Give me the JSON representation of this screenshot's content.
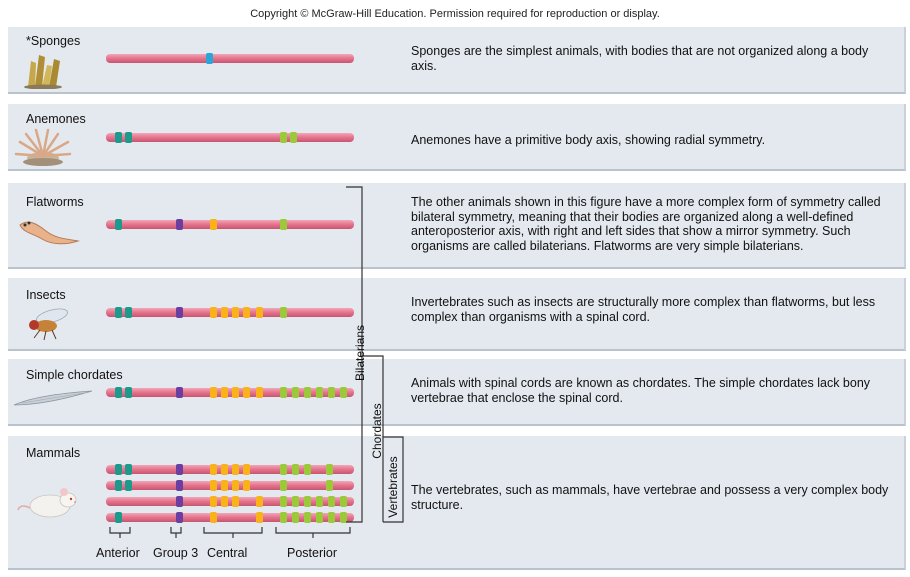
{
  "copyright": "Copyright © McGraw-Hill Education. Permission required for reproduction or display.",
  "panels": [
    {
      "name": "*Sponges",
      "description": "Sponges are the simplest animals, with bodies that are not organized along a body axis.",
      "illustration": "sponge-illustration"
    },
    {
      "name": "Anemones",
      "description": "Anemones have a primitive body axis, showing radial symmetry.",
      "illustration": "anemone-illustration"
    },
    {
      "name": "Flatworms",
      "description": "The other animals shown in this figure have a more complex form of symmetry called bilateral symmetry, meaning that their bodies are organized along a well-defined anteroposterior axis, with right and left sides that show a mirror symmetry. Such organisms are called bilaterians. Flatworms are very simple bilaterians.",
      "illustration": "flatworm-illustration"
    },
    {
      "name": "Insects",
      "description": "Invertebrates such as insects are structurally more complex than flatworms, but less complex than organisms with a spinal cord.",
      "illustration": "fly-illustration"
    },
    {
      "name": "Simple chordates",
      "description": "Animals with spinal cords are known as chordates. The simple chordates lack bony vertebrae that enclose the spinal cord.",
      "illustration": "lancelet-illustration"
    },
    {
      "name": "Mammals",
      "description": "The vertebrates, such as mammals, have vertebrae and possess a very complex body structure.",
      "illustration": "mouse-illustration"
    }
  ],
  "brackets": {
    "bilaterians": "Bilaterians",
    "chordates": "Chordates",
    "vertebrates": "Vertebrates"
  },
  "gene_groups": {
    "anterior": "Anterior",
    "group3": "Group 3",
    "central": "Central",
    "posterior": "Posterior"
  },
  "colors": {
    "chromosome": "#e6778f",
    "anterior": "#1a9b8c",
    "sponge_gene": "#2aa5d9",
    "group3": "#6a3fa0",
    "central": "#f9b21a",
    "posterior": "#9cc93a",
    "panel_background": "#e4e9ef"
  }
}
